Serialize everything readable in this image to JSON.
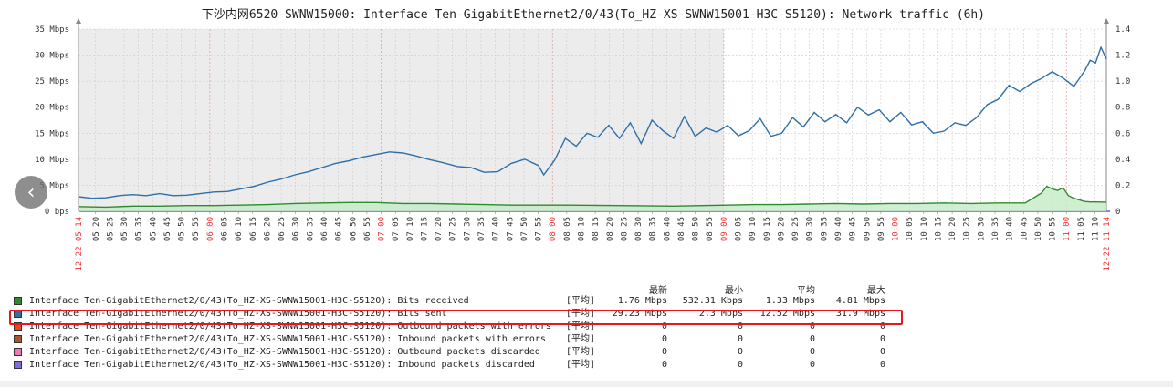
{
  "chart_data": {
    "type": "line",
    "title": "下沙内网6520-SWNW15000: Interface Ten-GigabitEthernet2/0/43(To_HZ-XS-SWNW15001-H3C-S5120): Network traffic (6h)",
    "y_left_ticks": [
      "0 bps",
      "5 Mbps",
      "10 Mbps",
      "15 Mbps",
      "20 Mbps",
      "25 Mbps",
      "30 Mbps",
      "35 Mbps"
    ],
    "y_left_range": [
      0,
      35
    ],
    "y_right_ticks": [
      "0",
      "0.2",
      "0.4",
      "0.6",
      "0.8",
      "1.0",
      "1.2",
      "1.4"
    ],
    "y_right_range": [
      0,
      1.4
    ],
    "x_start_label": "12-22 05:14",
    "x_end_label": "12-22 11:14",
    "x_tick_labels": [
      "05:20",
      "05:25",
      "05:30",
      "05:35",
      "05:40",
      "05:45",
      "05:50",
      "05:55",
      "06:00",
      "06:05",
      "06:10",
      "06:15",
      "06:20",
      "06:25",
      "06:30",
      "06:35",
      "06:40",
      "06:45",
      "06:50",
      "06:55",
      "07:00",
      "07:05",
      "07:10",
      "07:15",
      "07:20",
      "07:25",
      "07:30",
      "07:35",
      "07:40",
      "07:45",
      "07:50",
      "07:55",
      "08:00",
      "08:05",
      "08:10",
      "08:15",
      "08:20",
      "08:25",
      "08:30",
      "08:35",
      "08:40",
      "08:45",
      "08:50",
      "08:55",
      "09:00",
      "09:05",
      "09:10",
      "09:15",
      "09:20",
      "09:25",
      "09:30",
      "09:35",
      "09:40",
      "09:45",
      "09:50",
      "09:55",
      "10:00",
      "10:05",
      "10:10",
      "10:15",
      "10:20",
      "10:25",
      "10:30",
      "10:35",
      "10:40",
      "10:45",
      "10:50",
      "10:55",
      "11:00",
      "11:05",
      "11:10"
    ],
    "x_major_labels": [
      "06:00",
      "07:00",
      "08:00",
      "09:00",
      "10:00",
      "11:00"
    ],
    "shaded_region_end": "09:00",
    "series": [
      {
        "name": "Interface Ten-GigabitEthernet2/0/43(To_HZ-XS-SWNW15001-H3C-S5120): Bits received",
        "color": "#2f8a2f",
        "fill": "#c8ecc8",
        "points": [
          [
            0,
            0.9
          ],
          [
            10,
            0.8
          ],
          [
            20,
            1.0
          ],
          [
            30,
            1.0
          ],
          [
            40,
            1.1
          ],
          [
            50,
            1.1
          ],
          [
            60,
            1.2
          ],
          [
            70,
            1.3
          ],
          [
            80,
            1.5
          ],
          [
            90,
            1.6
          ],
          [
            100,
            1.7
          ],
          [
            110,
            1.7
          ],
          [
            120,
            1.5
          ],
          [
            130,
            1.5
          ],
          [
            140,
            1.4
          ],
          [
            150,
            1.3
          ],
          [
            160,
            1.2
          ],
          [
            170,
            1.2
          ],
          [
            180,
            1.2
          ],
          [
            200,
            1.1
          ],
          [
            220,
            1.0
          ],
          [
            240,
            1.2
          ],
          [
            250,
            1.3
          ],
          [
            260,
            1.3
          ],
          [
            270,
            1.4
          ],
          [
            280,
            1.5
          ],
          [
            290,
            1.4
          ],
          [
            300,
            1.5
          ],
          [
            310,
            1.5
          ],
          [
            320,
            1.6
          ],
          [
            330,
            1.5
          ],
          [
            340,
            1.6
          ],
          [
            350,
            1.6
          ],
          [
            356,
            3.5
          ],
          [
            358,
            4.8
          ],
          [
            360,
            4.3
          ],
          [
            362,
            4.0
          ],
          [
            364,
            4.5
          ],
          [
            366,
            3.0
          ],
          [
            368,
            2.5
          ],
          [
            370,
            2.2
          ],
          [
            372,
            1.9
          ],
          [
            374,
            1.8
          ],
          [
            376,
            1.8
          ],
          [
            380,
            1.76
          ]
        ]
      },
      {
        "name": "Interface Ten-GigabitEthernet2/0/43(To_HZ-XS-SWNW15001-H3C-S5120): Bits sent",
        "color": "#2d6fa8",
        "points": [
          [
            0,
            2.8
          ],
          [
            5,
            2.5
          ],
          [
            10,
            2.6
          ],
          [
            15,
            3.0
          ],
          [
            20,
            3.2
          ],
          [
            25,
            3.0
          ],
          [
            30,
            3.4
          ],
          [
            35,
            3.0
          ],
          [
            40,
            3.1
          ],
          [
            45,
            3.4
          ],
          [
            50,
            3.7
          ],
          [
            55,
            3.8
          ],
          [
            60,
            4.3
          ],
          [
            65,
            4.8
          ],
          [
            70,
            5.6
          ],
          [
            75,
            6.2
          ],
          [
            80,
            7.0
          ],
          [
            85,
            7.6
          ],
          [
            90,
            8.4
          ],
          [
            95,
            9.2
          ],
          [
            100,
            9.7
          ],
          [
            105,
            10.4
          ],
          [
            110,
            10.9
          ],
          [
            115,
            11.4
          ],
          [
            120,
            11.2
          ],
          [
            125,
            10.6
          ],
          [
            130,
            9.9
          ],
          [
            135,
            9.3
          ],
          [
            140,
            8.6
          ],
          [
            145,
            8.4
          ],
          [
            150,
            7.5
          ],
          [
            155,
            7.6
          ],
          [
            160,
            9.2
          ],
          [
            165,
            10.0
          ],
          [
            170,
            8.8
          ],
          [
            172,
            7.0
          ],
          [
            176,
            9.8
          ],
          [
            180,
            14.0
          ],
          [
            184,
            12.5
          ],
          [
            188,
            15.0
          ],
          [
            192,
            14.2
          ],
          [
            196,
            16.5
          ],
          [
            200,
            14.0
          ],
          [
            204,
            17.0
          ],
          [
            208,
            13.0
          ],
          [
            212,
            17.5
          ],
          [
            216,
            15.5
          ],
          [
            220,
            14.0
          ],
          [
            224,
            18.2
          ],
          [
            228,
            14.4
          ],
          [
            232,
            16.0
          ],
          [
            236,
            15.2
          ],
          [
            240,
            16.5
          ],
          [
            244,
            14.5
          ],
          [
            248,
            15.5
          ],
          [
            252,
            17.8
          ],
          [
            256,
            14.4
          ],
          [
            260,
            15.0
          ],
          [
            264,
            18.0
          ],
          [
            268,
            16.2
          ],
          [
            272,
            19.0
          ],
          [
            276,
            17.2
          ],
          [
            280,
            18.6
          ],
          [
            284,
            17.0
          ],
          [
            288,
            20.0
          ],
          [
            292,
            18.5
          ],
          [
            296,
            19.5
          ],
          [
            300,
            17.2
          ],
          [
            304,
            19.0
          ],
          [
            308,
            16.6
          ],
          [
            312,
            17.2
          ],
          [
            316,
            15.0
          ],
          [
            320,
            15.4
          ],
          [
            324,
            17.0
          ],
          [
            328,
            16.5
          ],
          [
            332,
            18.0
          ],
          [
            336,
            20.5
          ],
          [
            340,
            21.5
          ],
          [
            344,
            24.2
          ],
          [
            348,
            23.0
          ],
          [
            352,
            24.5
          ],
          [
            356,
            25.5
          ],
          [
            360,
            26.8
          ],
          [
            364,
            25.6
          ],
          [
            368,
            24.0
          ],
          [
            372,
            27.0
          ],
          [
            374,
            29.0
          ],
          [
            376,
            28.5
          ],
          [
            378,
            31.5
          ],
          [
            380,
            29.23
          ]
        ]
      },
      {
        "name": "Interface Ten-GigabitEthernet2/0/43(To_HZ-XS-SWNW15001-H3C-S5120): Outbound packets with errors",
        "color": "#e84a1a"
      },
      {
        "name": "Interface Ten-GigabitEthernet2/0/43(To_HZ-XS-SWNW15001-H3C-S5120): Inbound packets with errors",
        "color": "#a8572a"
      },
      {
        "name": "Interface Ten-GigabitEthernet2/0/43(To_HZ-XS-SWNW15001-H3C-S5120): Outbound packets discarded",
        "color": "#f07ab0"
      },
      {
        "name": "Interface Ten-GigabitEthernet2/0/43(To_HZ-XS-SWNW15001-H3C-S5120): Inbound packets discarded",
        "color": "#7a6ee0"
      }
    ],
    "grid": true,
    "legend_placement": "bottom"
  },
  "legend": {
    "headers": [
      "最新",
      "最小",
      "平均",
      "最大"
    ],
    "rows": [
      {
        "name": "Interface Ten-GigabitEthernet2/0/43(To_HZ-XS-SWNW15001-H3C-S5120): Bits received",
        "color": "#2f8a2f",
        "func": "[平均]",
        "last": "1.76 Mbps",
        "min": "532.31 Kbps",
        "avg": "1.33 Mbps",
        "max": "4.81 Mbps"
      },
      {
        "name": "Interface Ten-GigabitEthernet2/0/43(To_HZ-XS-SWNW15001-H3C-S5120): Bits sent",
        "color": "#2d6fa8",
        "func": "[平均]",
        "last": "29.23 Mbps",
        "min": "2.3 Mbps",
        "avg": "12.52 Mbps",
        "max": "31.9 Mbps"
      },
      {
        "name": "Interface Ten-GigabitEthernet2/0/43(To_HZ-XS-SWNW15001-H3C-S5120): Outbound packets with errors",
        "color": "#e84a1a",
        "func": "[平均]",
        "last": "0",
        "min": "0",
        "avg": "0",
        "max": "0"
      },
      {
        "name": "Interface Ten-GigabitEthernet2/0/43(To_HZ-XS-SWNW15001-H3C-S5120): Inbound packets with errors",
        "color": "#a8572a",
        "func": "[平均]",
        "last": "0",
        "min": "0",
        "avg": "0",
        "max": "0"
      },
      {
        "name": "Interface Ten-GigabitEthernet2/0/43(To_HZ-XS-SWNW15001-H3C-S5120): Outbound packets discarded",
        "color": "#f07ab0",
        "func": "[平均]",
        "last": "0",
        "min": "0",
        "avg": "0",
        "max": "0"
      },
      {
        "name": "Interface Ten-GigabitEthernet2/0/43(To_HZ-XS-SWNW15001-H3C-S5120): Inbound packets discarded",
        "color": "#7a6ee0",
        "func": "[平均]",
        "last": "0",
        "min": "0",
        "avg": "0",
        "max": "0"
      }
    ]
  },
  "nav": {
    "prev_icon": "chevron-left-icon",
    "prev_glyph": "‹"
  }
}
